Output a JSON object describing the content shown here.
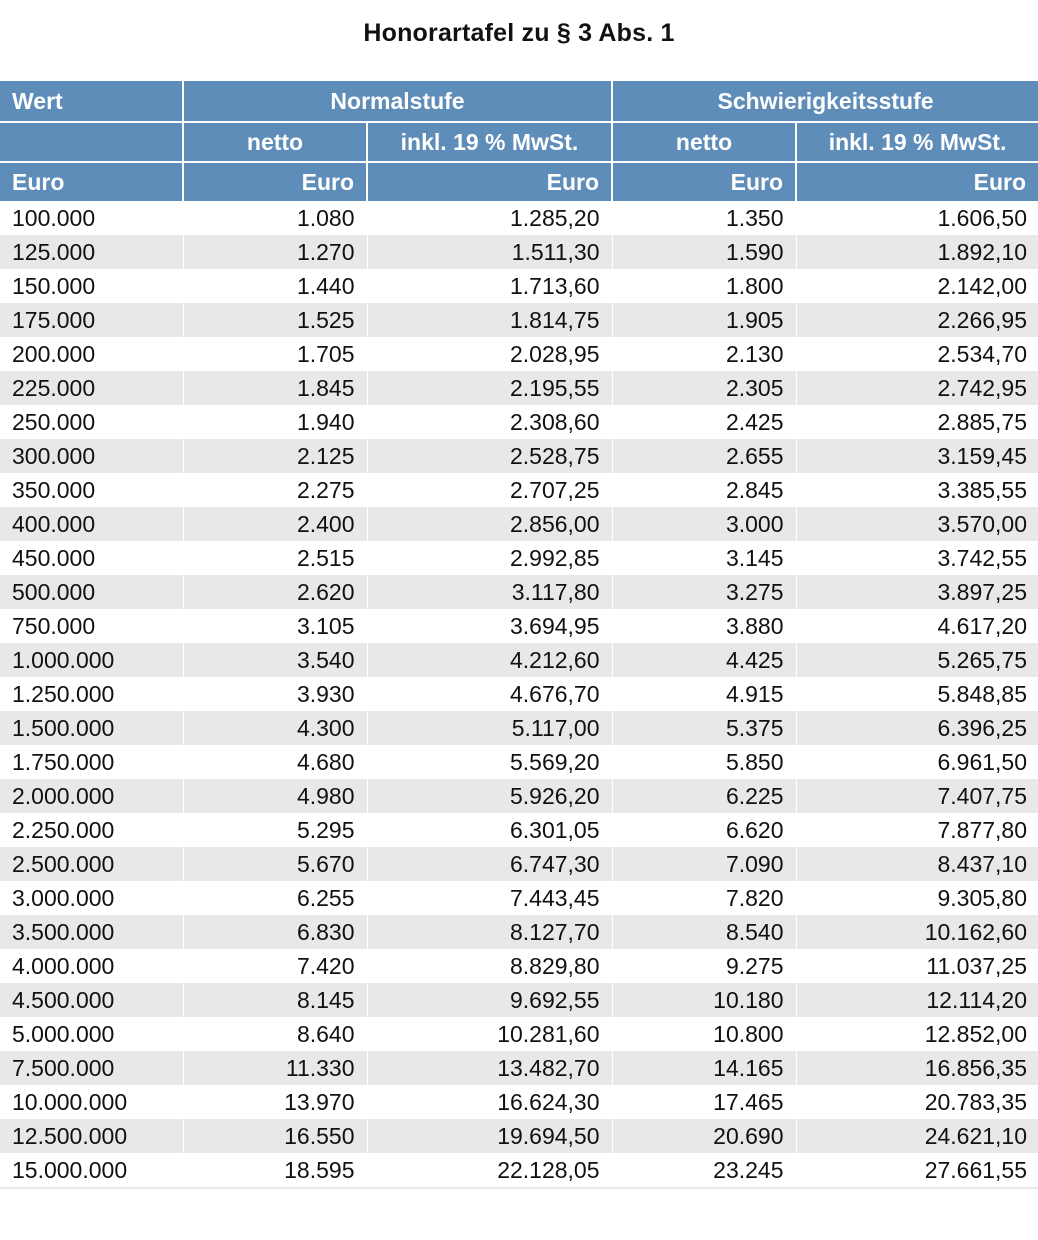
{
  "title": "Honorartafel zu § 3 Abs. 1",
  "header": {
    "wert": "Wert",
    "normalstufe": "Normalstufe",
    "schwierigkeitsstufe": "Schwierigkeitsstufe",
    "netto": "netto",
    "inkl": "inkl. 19 % MwSt.",
    "euro": "Euro"
  },
  "rows": [
    [
      "100.000",
      "1.080",
      "1.285,20",
      "1.350",
      "1.606,50"
    ],
    [
      "125.000",
      "1.270",
      "1.511,30",
      "1.590",
      "1.892,10"
    ],
    [
      "150.000",
      "1.440",
      "1.713,60",
      "1.800",
      "2.142,00"
    ],
    [
      "175.000",
      "1.525",
      "1.814,75",
      "1.905",
      "2.266,95"
    ],
    [
      "200.000",
      "1.705",
      "2.028,95",
      "2.130",
      "2.534,70"
    ],
    [
      "225.000",
      "1.845",
      "2.195,55",
      "2.305",
      "2.742,95"
    ],
    [
      "250.000",
      "1.940",
      "2.308,60",
      "2.425",
      "2.885,75"
    ],
    [
      "300.000",
      "2.125",
      "2.528,75",
      "2.655",
      "3.159,45"
    ],
    [
      "350.000",
      "2.275",
      "2.707,25",
      "2.845",
      "3.385,55"
    ],
    [
      "400.000",
      "2.400",
      "2.856,00",
      "3.000",
      "3.570,00"
    ],
    [
      "450.000",
      "2.515",
      "2.992,85",
      "3.145",
      "3.742,55"
    ],
    [
      "500.000",
      "2.620",
      "3.117,80",
      "3.275",
      "3.897,25"
    ],
    [
      "750.000",
      "3.105",
      "3.694,95",
      "3.880",
      "4.617,20"
    ],
    [
      "1.000.000",
      "3.540",
      "4.212,60",
      "4.425",
      "5.265,75"
    ],
    [
      "1.250.000",
      "3.930",
      "4.676,70",
      "4.915",
      "5.848,85"
    ],
    [
      "1.500.000",
      "4.300",
      "5.117,00",
      "5.375",
      "6.396,25"
    ],
    [
      "1.750.000",
      "4.680",
      "5.569,20",
      "5.850",
      "6.961,50"
    ],
    [
      "2.000.000",
      "4.980",
      "5.926,20",
      "6.225",
      "7.407,75"
    ],
    [
      "2.250.000",
      "5.295",
      "6.301,05",
      "6.620",
      "7.877,80"
    ],
    [
      "2.500.000",
      "5.670",
      "6.747,30",
      "7.090",
      "8.437,10"
    ],
    [
      "3.000.000",
      "6.255",
      "7.443,45",
      "7.820",
      "9.305,80"
    ],
    [
      "3.500.000",
      "6.830",
      "8.127,70",
      "8.540",
      "10.162,60"
    ],
    [
      "4.000.000",
      "7.420",
      "8.829,80",
      "9.275",
      "11.037,25"
    ],
    [
      "4.500.000",
      "8.145",
      "9.692,55",
      "10.180",
      "12.114,20"
    ],
    [
      "5.000.000",
      "8.640",
      "10.281,60",
      "10.800",
      "12.852,00"
    ],
    [
      "7.500.000",
      "11.330",
      "13.482,70",
      "14.165",
      "16.856,35"
    ],
    [
      "10.000.000",
      "13.970",
      "16.624,30",
      "17.465",
      "20.783,35"
    ],
    [
      "12.500.000",
      "16.550",
      "19.694,50",
      "20.690",
      "24.621,10"
    ],
    [
      "15.000.000",
      "18.595",
      "22.128,05",
      "23.245",
      "27.661,55"
    ]
  ]
}
